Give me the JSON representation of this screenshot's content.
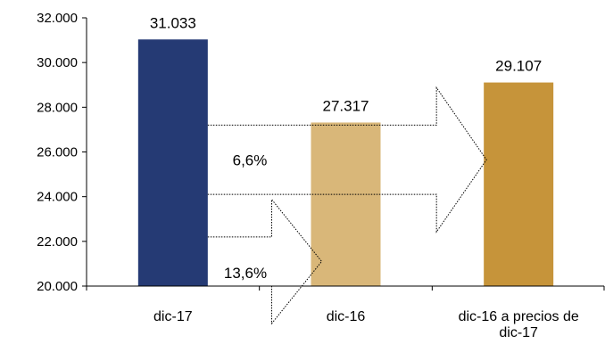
{
  "chart_data": {
    "type": "bar",
    "categories": [
      "dic-17",
      "dic-16",
      "dic-16 a precios de dic-17"
    ],
    "category_label_lines": [
      [
        "dic-17"
      ],
      [
        "dic-16"
      ],
      [
        "dic-16 a precios de",
        "dic-17"
      ]
    ],
    "values": [
      31033,
      27317,
      29107
    ],
    "data_labels": [
      "31.033",
      "27.317",
      "29.107"
    ],
    "bar_colors": [
      "#253a74",
      "#d9b779",
      "#c6943a"
    ],
    "ylim": [
      20000,
      32000
    ],
    "yticks": [
      20000,
      22000,
      24000,
      26000,
      28000,
      30000,
      32000
    ],
    "ytick_labels": [
      "20.000",
      "22.000",
      "24.000",
      "26.000",
      "28.000",
      "30.000",
      "32.000"
    ],
    "grid": false,
    "legend": "none",
    "annotations": [
      {
        "label": "6,6%",
        "style": "dotted block arrow",
        "from": "dic-17",
        "to": "dic-16 a precios de dic-17",
        "band": [
          24100,
          27200
        ]
      },
      {
        "label": "13,6%",
        "style": "dotted block arrow",
        "from": "dic-17",
        "to": "dic-16",
        "band": [
          20000,
          22200
        ]
      }
    ]
  }
}
